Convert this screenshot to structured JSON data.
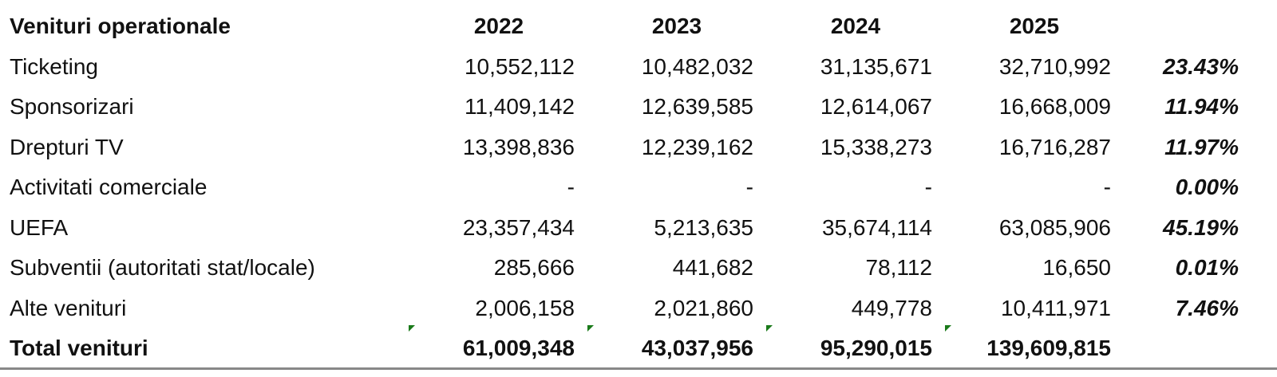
{
  "table": {
    "title": "Venituri operationale",
    "years": [
      "2022",
      "2023",
      "2024",
      "2025"
    ],
    "rows": [
      {
        "label": "Ticketing",
        "values": [
          "10,552,112",
          "10,482,032",
          "31,135,671",
          "32,710,992"
        ],
        "share": "23.43%"
      },
      {
        "label": "Sponsorizari",
        "values": [
          "11,409,142",
          "12,639,585",
          "12,614,067",
          "16,668,009"
        ],
        "share": "11.94%"
      },
      {
        "label": "Drepturi TV",
        "values": [
          "13,398,836",
          "12,239,162",
          "15,338,273",
          "16,716,287"
        ],
        "share": "11.97%"
      },
      {
        "label": "Activitati comerciale",
        "values": [
          "-",
          "-",
          "-",
          "-"
        ],
        "share": "0.00%"
      },
      {
        "label": "UEFA",
        "values": [
          "23,357,434",
          "5,213,635",
          "35,674,114",
          "63,085,906"
        ],
        "share": "45.19%"
      },
      {
        "label": "Subventii (autoritati stat/locale)",
        "values": [
          "285,666",
          "441,682",
          "78,112",
          "16,650"
        ],
        "share": "0.01%"
      },
      {
        "label": "Alte venituri",
        "values": [
          "2,006,158",
          "2,021,860",
          "449,778",
          "10,411,971"
        ],
        "share": "7.46%"
      }
    ],
    "total": {
      "label": "Total venituri",
      "values": [
        "61,009,348",
        "43,037,956",
        "95,290,015",
        "139,609,815"
      ]
    },
    "error_flag_color": "#1a7a1a"
  }
}
